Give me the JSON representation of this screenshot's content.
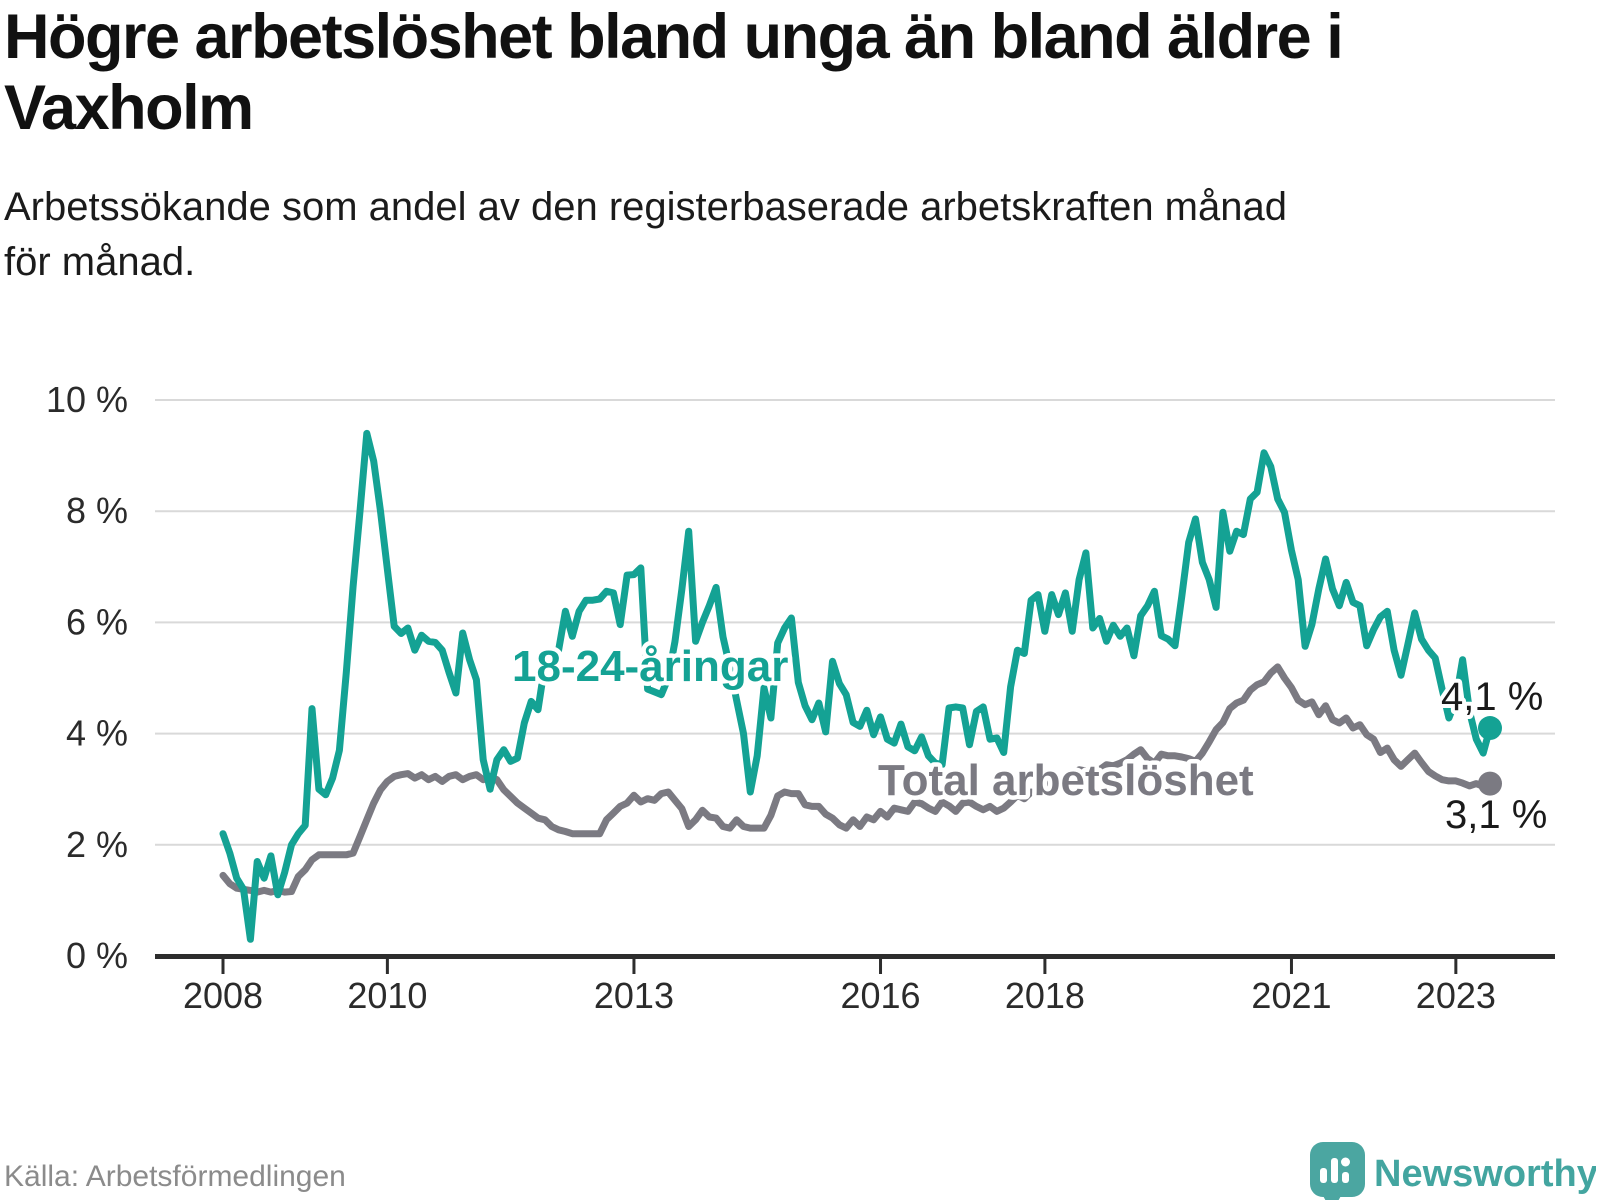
{
  "title_lines": [
    "Högre arbetslöshet bland unga än bland äldre i",
    "Vaxholm"
  ],
  "subtitle_lines": [
    "Arbetssökande som andel av den registerbaserade arbetskraften månad",
    "för månad."
  ],
  "source": "Källa: Arbetsförmedlingen",
  "brand": {
    "name": "Newsworthy"
  },
  "colors": {
    "young": "#14a294",
    "total": "#7b7a82",
    "grid": "#d9d9d9",
    "axis": "#2d2d2d",
    "end_label": "#1a1a1a",
    "brand_teal": "#4ba6a1",
    "background": "#ffffff"
  },
  "chart_data": {
    "type": "line",
    "unit": "%",
    "x_start": "2008-01",
    "x_end": "2023-06",
    "frequency": "monthly",
    "ylim": [
      0,
      10
    ],
    "grid": "horizontal",
    "y_ticks": [
      {
        "value": 10,
        "label": "10 %"
      },
      {
        "value": 8,
        "label": "8 %"
      },
      {
        "value": 6,
        "label": "6 %"
      },
      {
        "value": 4,
        "label": "4 %"
      },
      {
        "value": 2,
        "label": "2 %"
      },
      {
        "value": 0,
        "label": "0 %"
      }
    ],
    "x_ticks": [
      {
        "year": 2008,
        "label": "2008"
      },
      {
        "year": 2010,
        "label": "2010"
      },
      {
        "year": 2013,
        "label": "2013"
      },
      {
        "year": 2016,
        "label": "2016"
      },
      {
        "year": 2018,
        "label": "2018"
      },
      {
        "year": 2021,
        "label": "2021"
      },
      {
        "year": 2023,
        "label": "2023"
      }
    ],
    "series": [
      {
        "name": "18-24-åringar",
        "color": "#14a294",
        "end_label": "4,1 %",
        "end_value": 4.1,
        "values": [
          2.2,
          1.85,
          1.4,
          1.2,
          0.3,
          1.7,
          1.4,
          1.8,
          1.1,
          1.5,
          2.0,
          2.2,
          2.35,
          4.45,
          3.0,
          2.9,
          3.2,
          3.7,
          5.1,
          6.65,
          8.0,
          9.4,
          8.9,
          8.0,
          6.95,
          5.93,
          5.8,
          5.9,
          5.5,
          5.77,
          5.66,
          5.64,
          5.5,
          5.1,
          4.73,
          5.81,
          5.33,
          4.97,
          3.53,
          3.0,
          3.53,
          3.71,
          3.5,
          3.56,
          4.19,
          4.58,
          4.43,
          5.24,
          5.15,
          5.5,
          6.2,
          5.75,
          6.2,
          6.4,
          6.4,
          6.42,
          6.56,
          6.53,
          5.96,
          6.85,
          6.86,
          6.98,
          4.8,
          4.75,
          4.7,
          5.0,
          5.66,
          6.6,
          7.64,
          5.66,
          6.0,
          6.3,
          6.63,
          5.74,
          5.2,
          4.6,
          4.0,
          2.95,
          3.6,
          4.82,
          4.28,
          5.63,
          5.9,
          6.08,
          4.92,
          4.5,
          4.25,
          4.55,
          4.03,
          5.3,
          4.9,
          4.7,
          4.2,
          4.13,
          4.42,
          3.98,
          4.3,
          3.9,
          3.83,
          4.17,
          3.76,
          3.69,
          3.94,
          3.6,
          3.47,
          3.44,
          4.46,
          4.48,
          4.46,
          3.8,
          4.4,
          4.48,
          3.9,
          3.92,
          3.66,
          4.84,
          5.5,
          5.44,
          6.4,
          6.5,
          5.84,
          6.5,
          6.14,
          6.53,
          5.84,
          6.77,
          7.25,
          5.9,
          6.07,
          5.66,
          5.95,
          5.75,
          5.9,
          5.4,
          6.12,
          6.3,
          6.56,
          5.76,
          5.7,
          5.58,
          6.47,
          7.44,
          7.86,
          7.08,
          6.77,
          6.27,
          7.98,
          7.28,
          7.64,
          7.58,
          8.22,
          8.34,
          9.05,
          8.8,
          8.22,
          7.98,
          7.3,
          6.77,
          5.57,
          5.96,
          6.6,
          7.14,
          6.6,
          6.3,
          6.72,
          6.36,
          6.3,
          5.58,
          5.87,
          6.1,
          6.2,
          5.5,
          5.05,
          5.6,
          6.17,
          5.7,
          5.5,
          5.36,
          4.8,
          4.28,
          4.6,
          5.33,
          4.4,
          3.9,
          3.65,
          4.1
        ]
      },
      {
        "name": "Total arbetslöshet",
        "color": "#7b7a82",
        "end_label": "3,1 %",
        "end_value": 3.1,
        "values": [
          1.45,
          1.3,
          1.22,
          1.2,
          1.18,
          1.15,
          1.18,
          1.15,
          1.18,
          1.15,
          1.16,
          1.43,
          1.55,
          1.73,
          1.82,
          1.82,
          1.82,
          1.82,
          1.82,
          1.85,
          2.15,
          2.45,
          2.75,
          2.99,
          3.14,
          3.23,
          3.26,
          3.28,
          3.2,
          3.26,
          3.17,
          3.23,
          3.14,
          3.23,
          3.26,
          3.17,
          3.23,
          3.26,
          3.17,
          3.23,
          3.17,
          2.99,
          2.87,
          2.75,
          2.66,
          2.57,
          2.48,
          2.45,
          2.33,
          2.27,
          2.24,
          2.2,
          2.2,
          2.2,
          2.2,
          2.2,
          2.45,
          2.57,
          2.69,
          2.75,
          2.89,
          2.77,
          2.83,
          2.8,
          2.92,
          2.95,
          2.8,
          2.65,
          2.33,
          2.45,
          2.62,
          2.5,
          2.48,
          2.33,
          2.3,
          2.45,
          2.33,
          2.3,
          2.3,
          2.3,
          2.53,
          2.88,
          2.95,
          2.92,
          2.92,
          2.72,
          2.69,
          2.69,
          2.55,
          2.48,
          2.36,
          2.3,
          2.45,
          2.33,
          2.5,
          2.45,
          2.6,
          2.5,
          2.66,
          2.63,
          2.6,
          2.77,
          2.74,
          2.66,
          2.6,
          2.77,
          2.7,
          2.6,
          2.75,
          2.77,
          2.69,
          2.63,
          2.69,
          2.6,
          2.66,
          2.77,
          2.89,
          2.83,
          2.95,
          2.92,
          3.1,
          3.08,
          3.16,
          3.27,
          3.24,
          3.35,
          3.33,
          3.38,
          3.35,
          3.44,
          3.42,
          3.47,
          3.53,
          3.63,
          3.71,
          3.55,
          3.47,
          3.63,
          3.6,
          3.6,
          3.58,
          3.55,
          3.5,
          3.65,
          3.85,
          4.07,
          4.2,
          4.45,
          4.55,
          4.6,
          4.78,
          4.88,
          4.93,
          5.09,
          5.2,
          5.0,
          4.83,
          4.6,
          4.52,
          4.57,
          4.34,
          4.5,
          4.25,
          4.19,
          4.28,
          4.1,
          4.16,
          3.98,
          3.9,
          3.66,
          3.74,
          3.53,
          3.41,
          3.53,
          3.65,
          3.48,
          3.32,
          3.24,
          3.17,
          3.15,
          3.15,
          3.11,
          3.06,
          3.1,
          3.05,
          3.1
        ]
      }
    ]
  }
}
